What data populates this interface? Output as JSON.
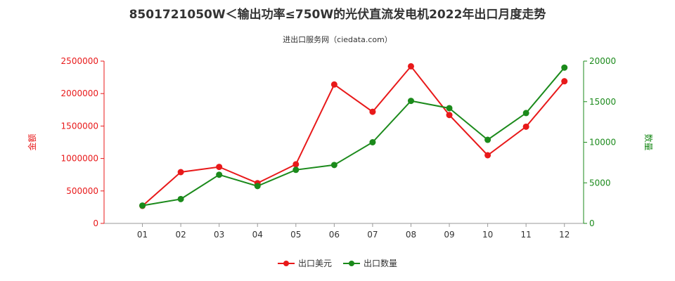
{
  "chart_data": {
    "type": "line",
    "title": "8501721050W＜输出功率≤750W的光伏直流发电机2022年出口月度走势",
    "subtitle": "进出口服务网（ciedata.com）",
    "categories": [
      "01",
      "02",
      "03",
      "04",
      "05",
      "06",
      "07",
      "08",
      "09",
      "10",
      "11",
      "12"
    ],
    "series": [
      {
        "name": "出口美元",
        "axis": "left",
        "color": "#e8191a",
        "values": [
          270000,
          790000,
          870000,
          620000,
          910000,
          2140000,
          1720000,
          2420000,
          1670000,
          1050000,
          1490000,
          2190000
        ]
      },
      {
        "name": "出口数量",
        "axis": "right",
        "color": "#1b8a1b",
        "values": [
          2200,
          3000,
          6000,
          4600,
          6600,
          7200,
          10000,
          15100,
          14200,
          10300,
          13600,
          19200
        ]
      }
    ],
    "left_axis": {
      "label": "金额",
      "color": "#e8191a",
      "ylim": [
        0,
        2500000
      ],
      "ticks": [
        "0",
        "500000",
        "1000000",
        "1500000",
        "2000000",
        "2500000"
      ]
    },
    "right_axis": {
      "label": "数量",
      "color": "#1b8a1b",
      "ylim": [
        0,
        20000
      ],
      "ticks": [
        "0",
        "5000",
        "10000",
        "15000",
        "20000"
      ]
    },
    "legend_position": "bottom-center",
    "grid": false
  }
}
